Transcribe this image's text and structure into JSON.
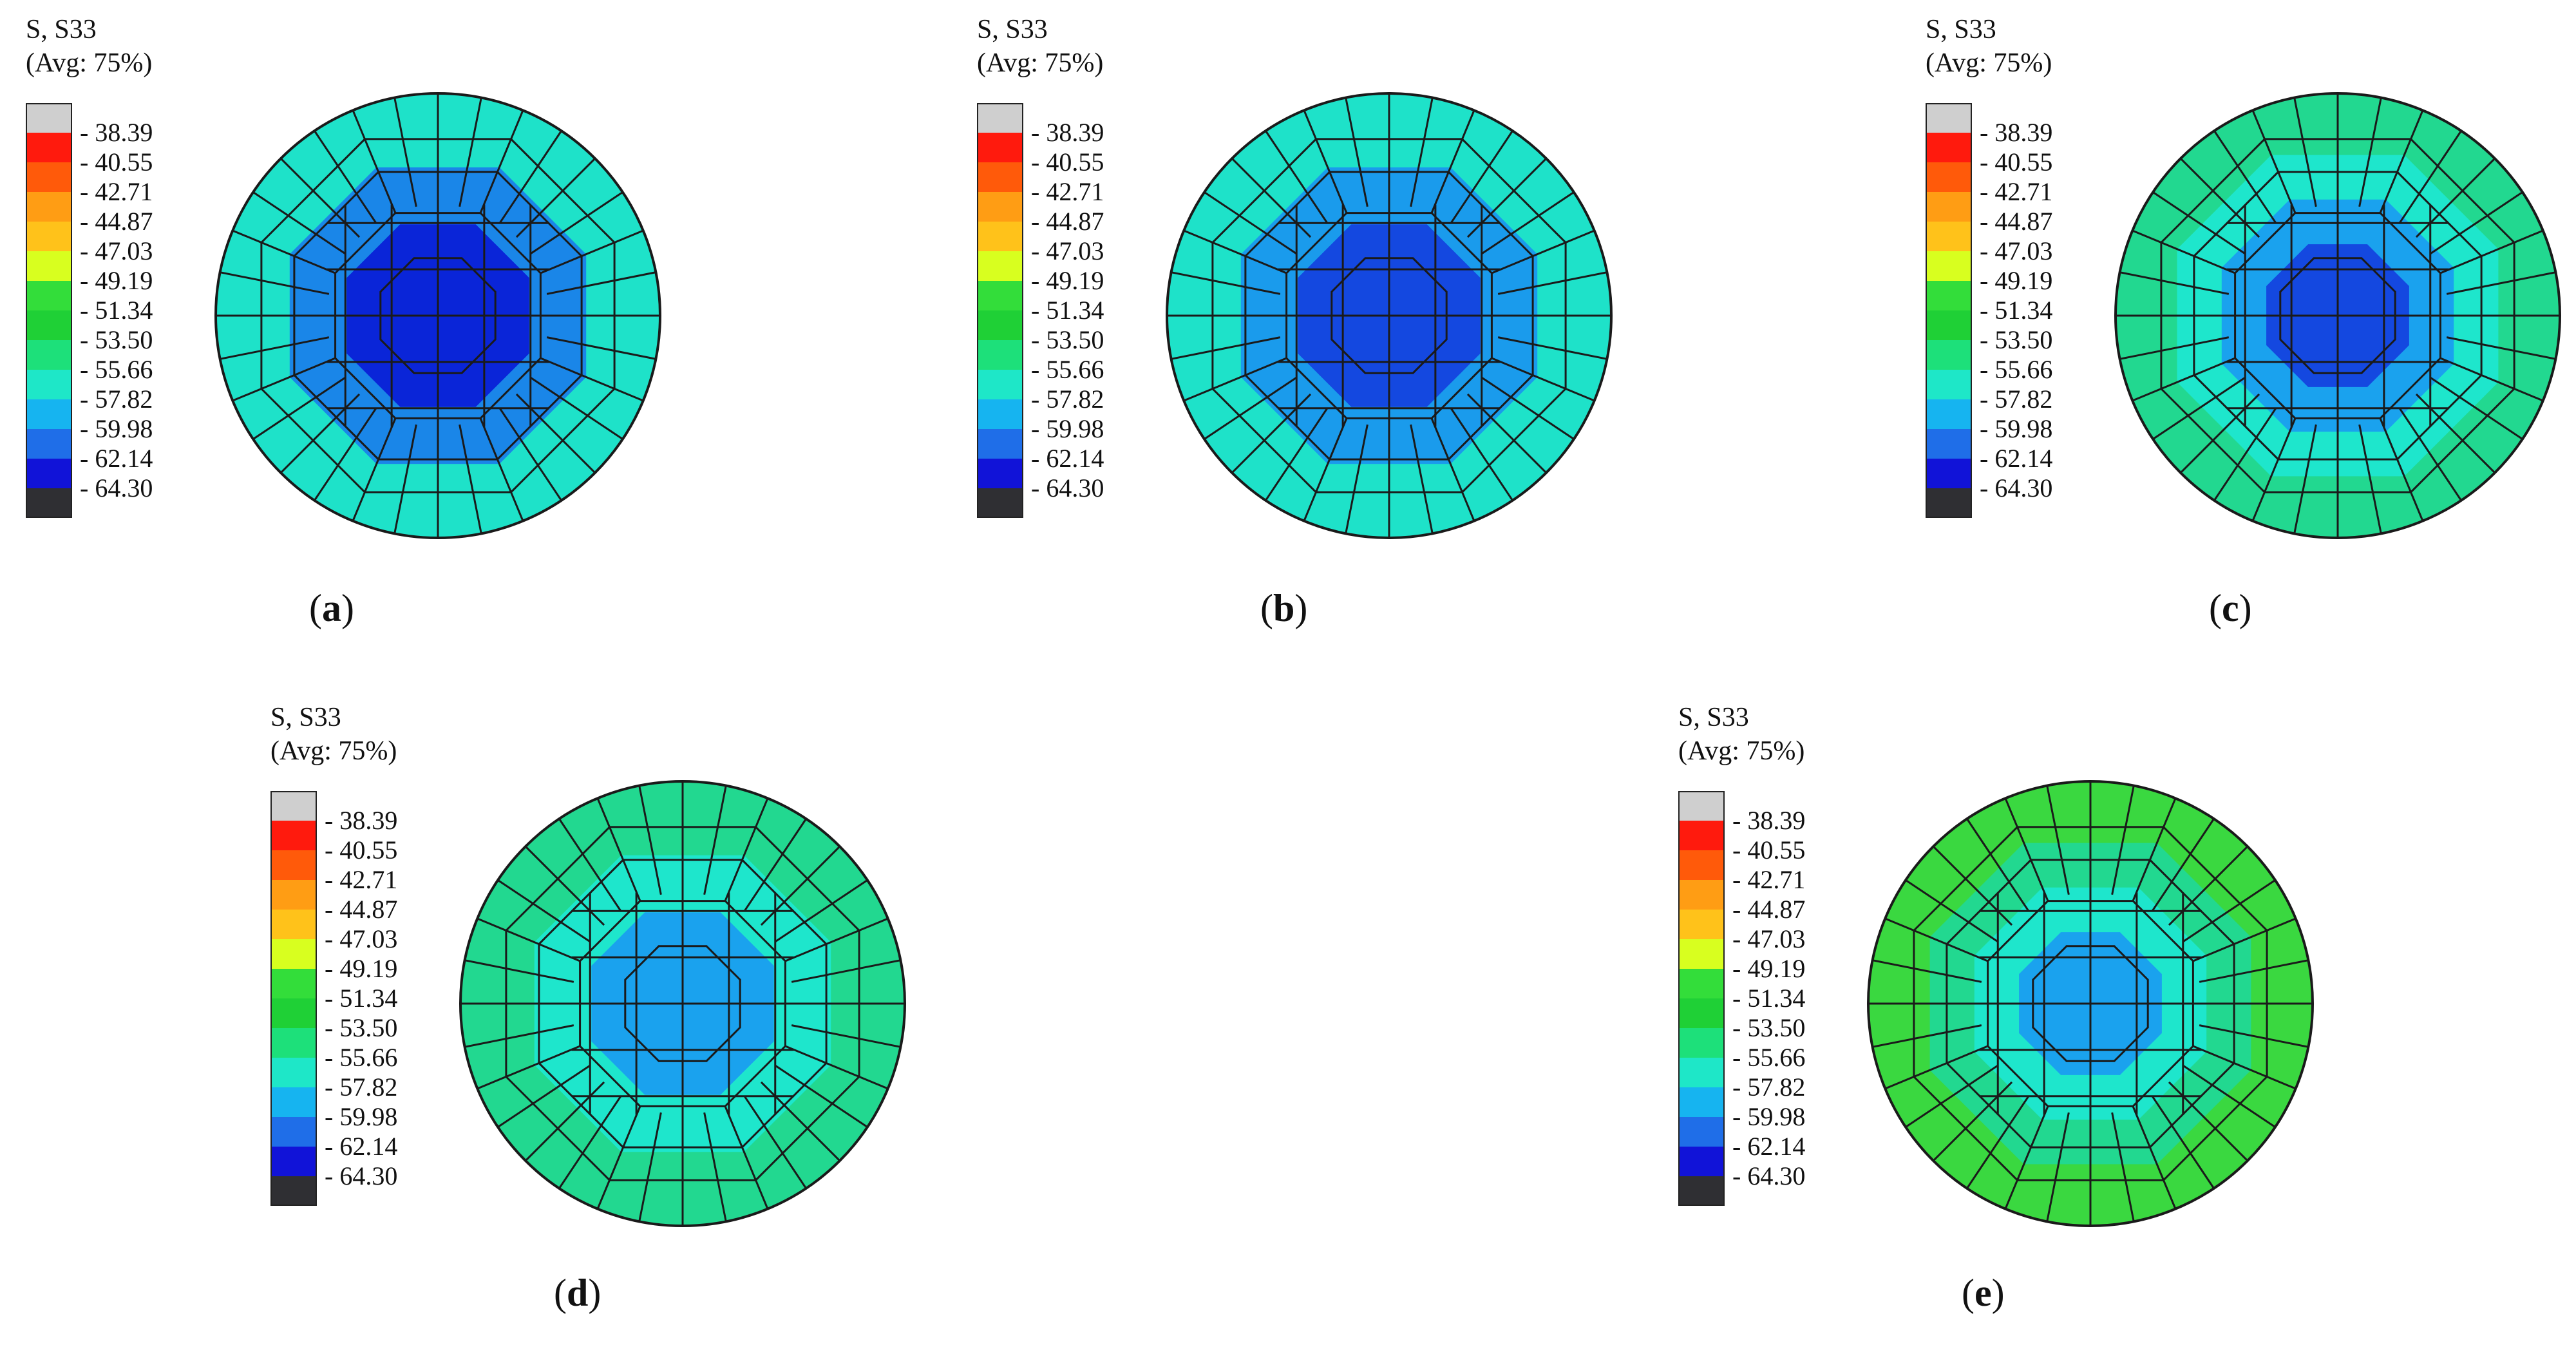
{
  "legend": {
    "variable": "S, S33",
    "averaging": "(Avg: 75%)",
    "ticks": [
      "- 38.39",
      "- 40.55",
      "- 42.71",
      "- 44.87",
      "- 47.03",
      "- 49.19",
      "- 51.34",
      "- 53.50",
      "- 55.66",
      "- 57.82",
      "- 59.98",
      "- 62.14",
      "- 64.30"
    ],
    "colors": [
      "#cfcfcf",
      "#ff1a0d",
      "#ff5a0a",
      "#ff9d14",
      "#ffc21a",
      "#d8ff1f",
      "#33dd3a",
      "#1fd036",
      "#1de07a",
      "#1ee7c8",
      "#16b4f0",
      "#1f6ee8",
      "#1113d8",
      "#2f2f33"
    ]
  },
  "panels": [
    {
      "id": "a",
      "caption_open": "(",
      "caption_letter": "a",
      "caption_close": ")",
      "rings": [
        "#1ee2c9",
        "#1a86e8",
        "#0a25d8"
      ]
    },
    {
      "id": "b",
      "caption_open": "(",
      "caption_letter": "b",
      "caption_close": ")",
      "rings": [
        "#1ee2c9",
        "#1a9bec",
        "#1448e0"
      ]
    },
    {
      "id": "c",
      "caption_open": "(",
      "caption_letter": "c",
      "caption_close": ")",
      "rings": [
        "#22d890",
        "#1ee6cc",
        "#1aa2ee",
        "#1448e0"
      ]
    },
    {
      "id": "d",
      "caption_open": "(",
      "caption_letter": "d",
      "caption_close": ")",
      "rings": [
        "#22d890",
        "#1ee6cc",
        "#1aa2ee"
      ]
    },
    {
      "id": "e",
      "caption_open": "(",
      "caption_letter": "e",
      "caption_close": ")",
      "rings": [
        "#3ad840",
        "#22d890",
        "#1ee6cc",
        "#1aa2ee"
      ]
    }
  ]
}
